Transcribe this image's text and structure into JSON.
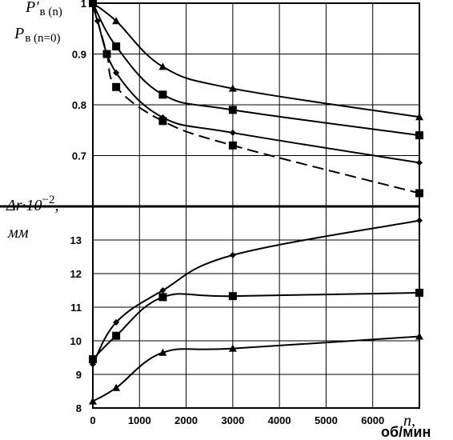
{
  "chart_data": [
    {
      "type": "line",
      "panel": "top",
      "ylabel_line1": "P'",
      "ylabel_line1_sub": "в (n)",
      "ylabel_line2": "P",
      "ylabel_line2_sub": "в (n=0)",
      "xlim": [
        0,
        7000
      ],
      "ylim": [
        0.6,
        1.0
      ],
      "yticks": [
        "1",
        "0.9",
        "0.8",
        "0.7"
      ],
      "ytick_values": [
        1.0,
        0.9,
        0.8,
        0.7
      ],
      "grid": true,
      "series": [
        {
          "marker": "triangle",
          "dash": false,
          "points": [
            [
              0,
              1.0
            ],
            [
              500,
              0.965
            ],
            [
              1500,
              0.875
            ],
            [
              3000,
              0.832
            ],
            [
              7000,
              0.776
            ]
          ]
        },
        {
          "marker": "square",
          "dash": false,
          "points": [
            [
              0,
              1.0
            ],
            [
              500,
              0.915
            ],
            [
              1500,
              0.82
            ],
            [
              3000,
              0.79
            ],
            [
              7000,
              0.74
            ]
          ]
        },
        {
          "marker": "diamond",
          "dash": false,
          "points": [
            [
              0,
              1.0
            ],
            [
              100,
              0.965
            ],
            [
              500,
              0.863
            ],
            [
              1500,
              0.775
            ],
            [
              3000,
              0.745
            ],
            [
              7000,
              0.686
            ]
          ]
        },
        {
          "marker": "square",
          "dash": true,
          "points": [
            [
              0,
              1.0
            ],
            [
              300,
              0.9
            ],
            [
              500,
              0.835
            ],
            [
              1500,
              0.768
            ],
            [
              3000,
              0.72
            ],
            [
              7000,
              0.626
            ]
          ]
        }
      ]
    },
    {
      "type": "line",
      "panel": "bottom",
      "ylabel_line1": "Δr·10",
      "ylabel_exp": "−2",
      "ylabel_comma": ",",
      "ylabel_line2": "мм",
      "xlabel_n": "n,",
      "xlabel_unit": "об/мин",
      "xlim": [
        0,
        7000
      ],
      "ylim": [
        8,
        14
      ],
      "xticks": [
        "0",
        "1000",
        "2000",
        "3000",
        "4000",
        "5000",
        "6000"
      ],
      "xtick_values": [
        0,
        1000,
        2000,
        3000,
        4000,
        5000,
        6000
      ],
      "yticks": [
        "13",
        "12",
        "11",
        "10",
        "9",
        "8"
      ],
      "ytick_values": [
        13,
        12,
        11,
        10,
        9,
        8
      ],
      "grid": true,
      "series": [
        {
          "marker": "diamond",
          "dash": false,
          "points": [
            [
              0,
              9.3
            ],
            [
              500,
              10.55
            ],
            [
              1500,
              11.5
            ],
            [
              3000,
              12.55
            ],
            [
              7000,
              13.58
            ]
          ]
        },
        {
          "marker": "square",
          "dash": false,
          "points": [
            [
              0,
              9.45
            ],
            [
              500,
              10.15
            ],
            [
              1500,
              11.3
            ],
            [
              3000,
              11.33
            ],
            [
              7000,
              11.43
            ]
          ]
        },
        {
          "marker": "triangle",
          "dash": false,
          "points": [
            [
              0,
              8.2
            ],
            [
              500,
              8.6
            ],
            [
              1500,
              9.65
            ],
            [
              3000,
              9.77
            ],
            [
              7000,
              10.13
            ]
          ]
        }
      ]
    }
  ]
}
